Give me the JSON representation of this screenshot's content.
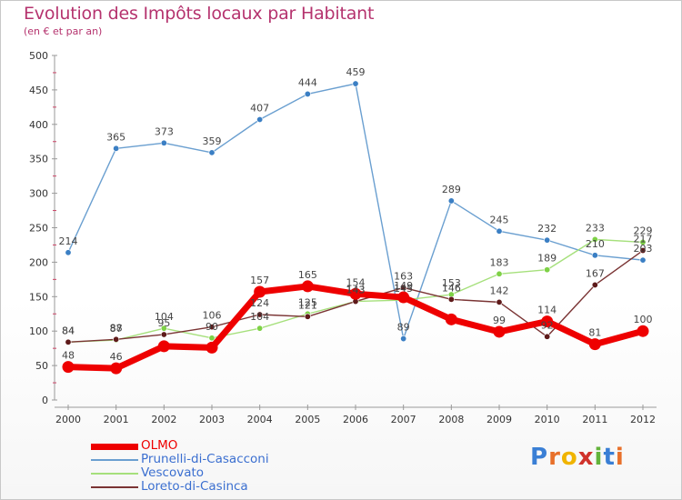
{
  "title": "Evolution des Impôts locaux par Habitant",
  "subtitle": "(en € et par an)",
  "logo": {
    "text": "Proxiti",
    "letters": [
      {
        "ch": "P",
        "color": "#3a7fd5"
      },
      {
        "ch": "r",
        "color": "#e8702a"
      },
      {
        "ch": "o",
        "color": "#f0b400"
      },
      {
        "ch": "x",
        "color": "#d0322b"
      },
      {
        "ch": "i",
        "color": "#63b33b"
      },
      {
        "ch": "t",
        "color": "#3a7fd5"
      },
      {
        "ch": "i",
        "color": "#e8702a"
      }
    ]
  },
  "chart_data": {
    "type": "line",
    "title": "Evolution des Impôts locaux par Habitant",
    "subtitle": "(en € et par an)",
    "xlabel": "",
    "ylabel": "",
    "x": [
      "2000",
      "2001",
      "2002",
      "2003",
      "2004",
      "2005",
      "2006",
      "2007",
      "2008",
      "2009",
      "2010",
      "2011",
      "2012"
    ],
    "ylim": [
      0,
      500
    ],
    "yticks": [
      0,
      50,
      100,
      150,
      200,
      250,
      300,
      350,
      400,
      450,
      500
    ],
    "yticks_labels": [
      "0",
      "50",
      "100",
      "150",
      "200",
      "250",
      "300",
      "350",
      "400",
      "450",
      "500"
    ],
    "grid": false,
    "legend_position": "bottom-left",
    "series": [
      {
        "name": "Prunelli-di-Casacconi",
        "color": "#6a9fd0",
        "marker_color": "#3b7fc4",
        "values": [
          214,
          365,
          373,
          359,
          407,
          444,
          459,
          89,
          289,
          245,
          232,
          210,
          203
        ],
        "labels": [
          "214",
          "365",
          "373",
          "359",
          "407",
          "444",
          "459",
          "89",
          "289",
          "245",
          "232",
          "210",
          "203"
        ]
      },
      {
        "name": "Vescovato",
        "color": "#a6e07c",
        "marker_color": "#7ed146",
        "values": [
          84,
          87,
          104,
          90,
          104,
          125,
          143,
          145,
          153,
          183,
          189,
          233,
          229
        ],
        "labels": [
          "84",
          "87",
          "104",
          "90",
          "104",
          "125",
          "143",
          "145",
          "153",
          "183",
          "189",
          "233",
          "229"
        ]
      },
      {
        "name": "Loreto-di-Casinca",
        "color": "#7a3434",
        "marker_color": "#5e1a1a",
        "values": [
          84,
          88,
          95,
          106,
          124,
          121,
          143,
          163,
          146,
          142,
          92,
          167,
          217
        ],
        "labels": [
          "84",
          "88",
          "95",
          "106",
          "124",
          "121",
          "143",
          "163",
          "146",
          "142",
          "92",
          "167",
          "217"
        ]
      },
      {
        "name": "OLMO",
        "color": "#ee0000",
        "marker_color": "#ee0000",
        "values": [
          48,
          46,
          78,
          76,
          157,
          165,
          154,
          149,
          117,
          99,
          114,
          81,
          100
        ],
        "labels": [
          "48",
          "46",
          "",
          "",
          "157",
          "165",
          "154",
          "149",
          "",
          "99",
          "114",
          "81",
          "100"
        ]
      }
    ]
  },
  "legend": [
    {
      "name": "OLMO",
      "color": "#ee0000",
      "text_color": "#ee0000",
      "thickness": 7
    },
    {
      "name": "Prunelli-di-Casacconi",
      "color": "#6a9fd0",
      "text_color": "#3b6fd0",
      "thickness": 2
    },
    {
      "name": "Vescovato",
      "color": "#a6e07c",
      "text_color": "#3b6fd0",
      "thickness": 2
    },
    {
      "name": "Loreto-di-Casinca",
      "color": "#7a3434",
      "text_color": "#3b6fd0",
      "thickness": 2
    }
  ]
}
